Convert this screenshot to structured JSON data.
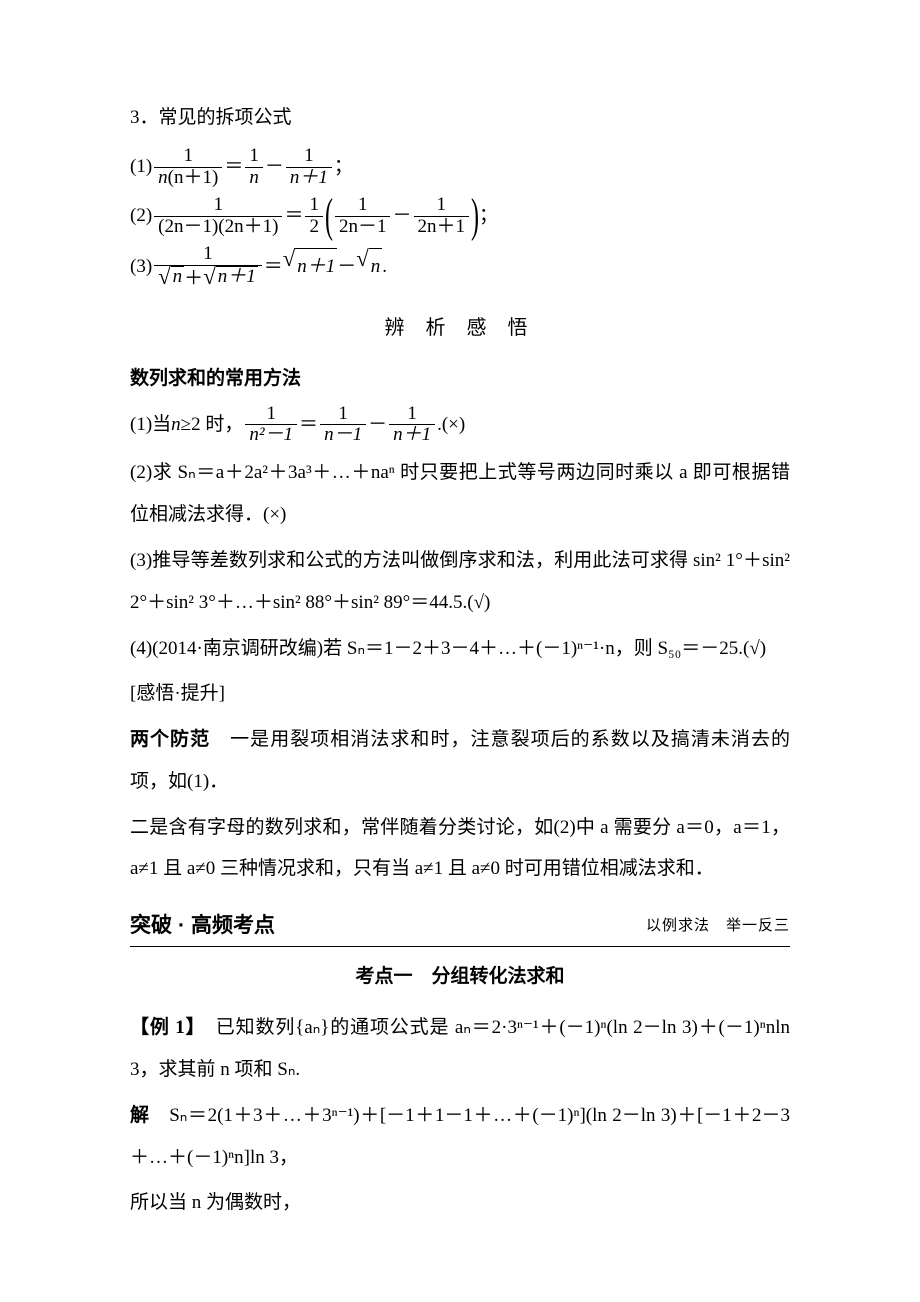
{
  "section3": {
    "title": "3．常见的拆项公式",
    "f1_label": "(1)",
    "f1_lhs_num": "1",
    "f1_lhs_den_a": "n",
    "f1_lhs_den_b": "(n＋1)",
    "f1_eq": "＝",
    "f1_r1_num": "1",
    "f1_r1_den": "n",
    "f1_minus": "－",
    "f1_r2_num": "1",
    "f1_r2_den": "n＋1",
    "f1_end": "；",
    "f2_label": "(2)",
    "f2_lhs_num": "1",
    "f2_lhs_den": "(2n－1)(2n＋1)",
    "f2_eq": "＝",
    "f2_half_num": "1",
    "f2_half_den": "2",
    "f2_lb": "(",
    "f2_rb": ")",
    "f2_r1_num": "1",
    "f2_r1_den": "2n－1",
    "f2_minus": "－",
    "f2_r2_num": "1",
    "f2_r2_den": "2n＋1",
    "f2_end": "；",
    "f3_label": "(3)",
    "f3_lhs_num": "1",
    "f3_lhs_den_a": "n",
    "f3_lhs_den_b": "n＋1",
    "f3_eq": "＝",
    "f3_r1": "n＋1",
    "f3_minus": "－",
    "f3_r2": "n",
    "f3_end": "."
  },
  "analysis": {
    "title": "辨 析 感 悟",
    "subtitle": "数列求和的常用方法",
    "p1_a": "(1)当 ",
    "p1_b": "n",
    "p1_c": "≥2 时，",
    "p1_f_lhs_num": "1",
    "p1_f_lhs_den": "n²－1",
    "p1_eq": "＝",
    "p1_f_r1_num": "1",
    "p1_f_r1_den": "n－1",
    "p1_minus": "－",
    "p1_f_r2_num": "1",
    "p1_f_r2_den": "n＋1",
    "p1_end": ".(×)",
    "p2": "(2)求 Sₙ＝a＋2a²＋3a³＋…＋naⁿ 时只要把上式等号两边同时乘以 a 即可根据错位相减法求得．(×)",
    "p3": "(3)推导等差数列求和公式的方法叫做倒序求和法，利用此法可求得 sin² 1°＋sin² 2°＋sin² 3°＋…＋sin² 88°＋sin² 89°＝44.5.(√)",
    "p4": "(4)(2014·南京调研改编)若 Sₙ＝1－2＋3－4＋…＋(－1)ⁿ⁻¹·n，则 S₅₀＝－25.(√)",
    "note_title": "[感悟·提升]",
    "note1_lead": "两个防范",
    "note1_body": "　一是用裂项相消法求和时，注意裂项后的系数以及搞清未消去的项，如(1)．",
    "note2": "二是含有字母的数列求和，常伴随着分类讨论，如(2)中 a 需要分 a＝0，a＝1，a≠1 且 a≠0 三种情况求和，只有当 a≠1 且 a≠0 时可用错位相减法求和．"
  },
  "breakthrough": {
    "left_a": "突破",
    "left_dot": "·",
    "left_b": "高频考点",
    "right": "以例求法　举一反三",
    "sec_title": "考点一　分组转化法求和",
    "ex_label": "【例 1】",
    "ex_body": "　已知数列{aₙ}的通项公式是 aₙ＝2·3ⁿ⁻¹＋(－1)ⁿ(ln 2－ln 3)＋(－1)ⁿnln 3，求其前 n 项和 Sₙ.",
    "sol_label": "解",
    "sol_body": "　Sₙ＝2(1＋3＋…＋3ⁿ⁻¹)＋[－1＋1－1＋…＋(－1)ⁿ](ln 2－ln 3)＋[－1＋2－3＋…＋(－1)ⁿn]ln 3，",
    "sol_p2": "所以当 n 为偶数时，"
  }
}
